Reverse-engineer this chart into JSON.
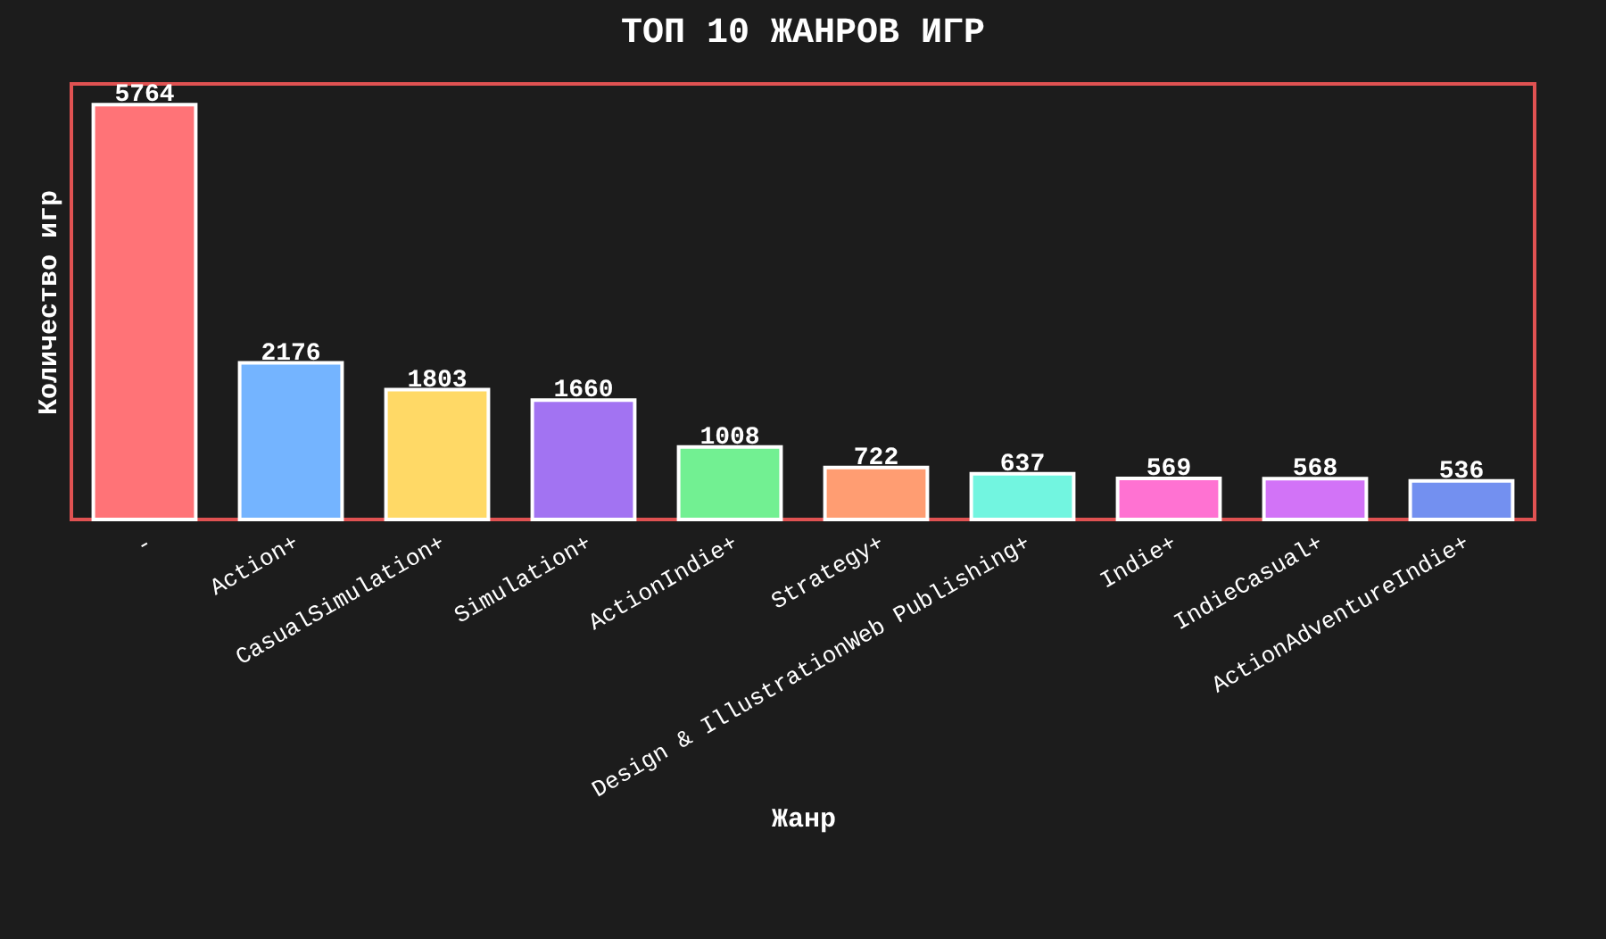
{
  "chart_data": {
    "type": "bar",
    "title": "ТОП 10 ЖАНРОВ ИГР",
    "xlabel": "Жанр",
    "ylabel": "Количество игр",
    "categories": [
      "-",
      "Action+",
      "CasualSimulation+",
      "Simulation+",
      "ActionIndie+",
      "Strategy+",
      "Design & IllustrationWeb Publishing+",
      "Indie+",
      "IndieCasual+",
      "ActionAdventureIndie+"
    ],
    "values": [
      5764,
      2176,
      1803,
      1660,
      1008,
      722,
      637,
      569,
      568,
      536
    ],
    "colors": [
      "#ff7377",
      "#74b4ff",
      "#ffd966",
      "#a273f2",
      "#72f092",
      "#ff9d72",
      "#72f5e0",
      "#ff72d2",
      "#d273f7",
      "#7390f0"
    ],
    "ylim": [
      0,
      6052
    ],
    "data_labels": true,
    "tick_labels": "x"
  }
}
